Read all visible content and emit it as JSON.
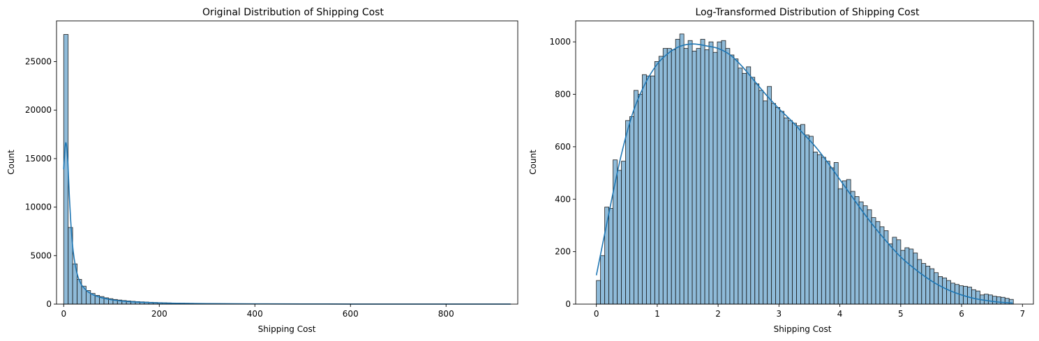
{
  "chart_data": [
    {
      "type": "bar",
      "subtype": "histogram-with-kde",
      "title": "Original Distribution of Shipping Cost",
      "xlabel": "Shipping Cost",
      "ylabel": "Count",
      "xlim": [
        -15,
        950
      ],
      "ylim": [
        0,
        29200
      ],
      "xticks": [
        0,
        200,
        400,
        600,
        800
      ],
      "yticks": [
        0,
        5000,
        10000,
        15000,
        20000,
        25000
      ],
      "bin_start": 0,
      "bin_width": 9.37,
      "counts": [
        27800,
        7900,
        4150,
        2550,
        1850,
        1400,
        1100,
        900,
        780,
        650,
        560,
        480,
        420,
        370,
        330,
        290,
        260,
        235,
        210,
        190,
        170,
        155,
        140,
        128,
        117,
        107,
        98,
        90,
        83,
        77,
        71,
        66,
        61,
        57,
        53,
        49,
        46,
        43,
        40,
        37,
        35,
        32,
        30,
        28,
        26,
        25,
        23,
        22,
        21,
        19,
        18,
        17,
        16,
        15,
        14,
        14,
        13,
        12,
        12,
        11,
        10,
        10,
        9,
        9,
        8,
        8,
        7,
        7,
        7,
        6,
        6,
        6,
        5,
        5,
        5,
        5,
        4,
        4,
        4,
        4,
        4,
        3,
        3,
        3,
        3,
        3,
        3,
        2,
        2,
        2,
        2,
        2,
        2,
        2,
        2,
        2,
        2,
        2,
        1,
        1
      ],
      "kde": {
        "x": [
          0,
          4,
          8,
          12,
          16,
          20,
          25,
          30,
          35,
          40,
          50,
          60,
          70,
          80,
          100,
          120,
          150,
          200,
          250,
          300,
          400,
          500,
          600,
          700,
          800,
          935
        ],
        "y": [
          13900,
          16600,
          15200,
          11000,
          7600,
          5400,
          3800,
          2800,
          2200,
          1800,
          1300,
          1000,
          800,
          650,
          450,
          330,
          220,
          120,
          75,
          50,
          25,
          15,
          8,
          5,
          3,
          2
        ]
      }
    },
    {
      "type": "bar",
      "subtype": "histogram-with-kde",
      "title": "Log-Transformed Distribution of Shipping Cost",
      "xlabel": "Shipping Cost",
      "ylabel": "Count",
      "xlim": [
        -0.34,
        7.18
      ],
      "ylim": [
        0,
        1080
      ],
      "xticks": [
        0,
        1,
        2,
        3,
        4,
        5,
        6,
        7
      ],
      "yticks": [
        0,
        200,
        400,
        600,
        800,
        1000
      ],
      "bin_start": 0,
      "bin_width": 0.0685,
      "counts": [
        90,
        185,
        370,
        365,
        550,
        510,
        545,
        700,
        715,
        815,
        800,
        875,
        870,
        870,
        925,
        945,
        975,
        975,
        970,
        1010,
        1030,
        975,
        1005,
        965,
        975,
        1010,
        970,
        1000,
        960,
        1000,
        1005,
        975,
        950,
        935,
        900,
        880,
        905,
        865,
        840,
        815,
        775,
        830,
        765,
        750,
        735,
        710,
        700,
        690,
        680,
        685,
        645,
        640,
        580,
        570,
        560,
        545,
        520,
        540,
        440,
        470,
        475,
        430,
        410,
        390,
        375,
        360,
        330,
        315,
        295,
        280,
        230,
        255,
        245,
        205,
        215,
        210,
        195,
        170,
        155,
        145,
        135,
        120,
        105,
        100,
        90,
        80,
        75,
        70,
        68,
        65,
        55,
        50,
        35,
        38,
        35,
        30,
        28,
        26,
        22,
        18
      ],
      "kde": {
        "x": [
          0,
          0.2,
          0.4,
          0.6,
          0.8,
          1.0,
          1.2,
          1.4,
          1.6,
          1.8,
          2.0,
          2.2,
          2.4,
          2.6,
          2.8,
          3.0,
          3.2,
          3.4,
          3.6,
          3.8,
          4.0,
          4.2,
          4.4,
          4.6,
          4.8,
          5.0,
          5.2,
          5.4,
          5.6,
          5.8,
          6.0,
          6.2,
          6.4,
          6.6,
          6.84
        ],
        "y": [
          110,
          340,
          560,
          730,
          840,
          915,
          960,
          985,
          992,
          985,
          975,
          950,
          905,
          850,
          795,
          745,
          700,
          650,
          600,
          540,
          475,
          410,
          345,
          285,
          230,
          180,
          140,
          105,
          75,
          52,
          35,
          22,
          14,
          8,
          4
        ]
      }
    }
  ]
}
